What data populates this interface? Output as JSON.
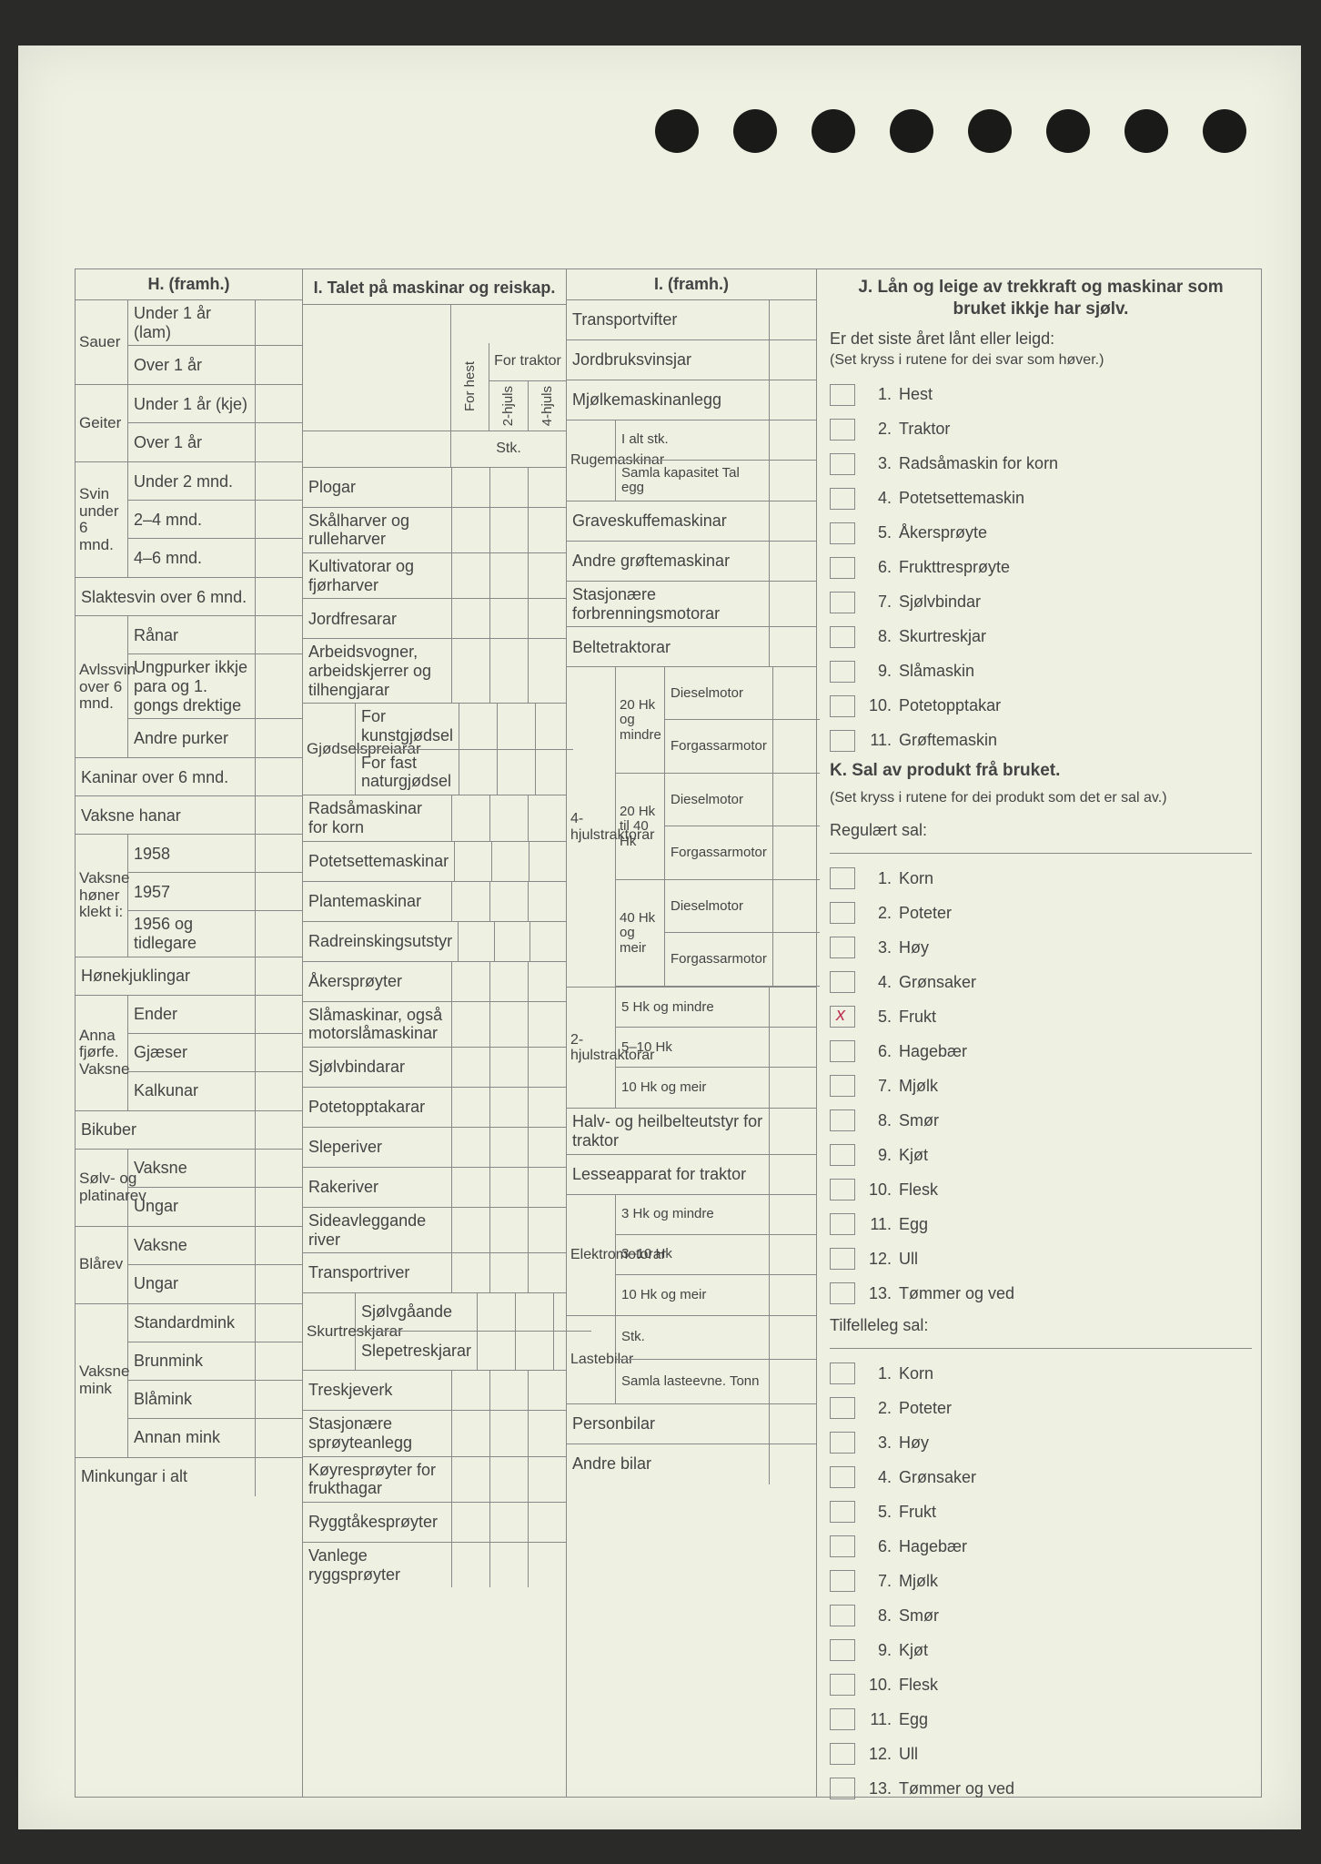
{
  "header": {
    "H": "H. (framh.)",
    "I": "I. Talet på maskinar og reiskap.",
    "I2": "I. (framh.)",
    "J": "J. Lån og leige av trekkraft og maskinar som bruket ikkje har sjølv.",
    "K": "K. Sal av produkt frå bruket."
  },
  "H": {
    "groups": [
      {
        "side": "Sauer",
        "rows": [
          "Under 1 år (lam)",
          "Over 1 år"
        ]
      },
      {
        "side": "Geiter",
        "rows": [
          "Under 1 år (kje)",
          "Over 1 år"
        ]
      },
      {
        "side": "Svin under 6 mnd.",
        "rows": [
          "Under 2 mnd.",
          "2–4 mnd.",
          "4–6 mnd."
        ]
      }
    ],
    "slaktesvin": "Slaktesvin over 6 mnd.",
    "avls": {
      "side": "Avlssvin over 6 mnd.",
      "rows": [
        "Rånar",
        "Ungpurker ikkje para og 1. gongs drektige",
        "Andre purker"
      ]
    },
    "kaninar": "Kaninar over 6 mnd.",
    "hanar": "Vaksne hanar",
    "honer": {
      "side": "Vaksne høner klekt i:",
      "rows": [
        "1958",
        "1957",
        "1956 og tidlegare"
      ]
    },
    "honekjuklingar": "Hønekjuklingar",
    "fjorfe": {
      "side": "Anna fjørfe. Vaksne",
      "rows": [
        "Ender",
        "Gjæser",
        "Kalkunar"
      ]
    },
    "bikuber": "Bikuber",
    "solvrev": {
      "side": "Sølv- og platinarev",
      "rows": [
        "Vaksne",
        "Ungar"
      ]
    },
    "blarev": {
      "side": "Blårev",
      "rows": [
        "Vaksne",
        "Ungar"
      ]
    },
    "mink": {
      "side": "Vaksne mink",
      "rows": [
        "Standardmink",
        "Brunmink",
        "Blåmink",
        "Annan mink"
      ]
    },
    "minkungar": "Minkungar i alt"
  },
  "I": {
    "for_traktor": "For traktor",
    "for_hest": "For hest",
    "hjuls2": "2-hjuls",
    "hjuls4": "4-hjuls",
    "stk": "Stk.",
    "rows": [
      "Plogar",
      "Skålharver og rulleharver",
      "Kultivatorar og fjørharver",
      "Jordfresarar"
    ],
    "arbeidsvogner": "Arbeidsvogner, arbeidskjerrer og tilhengjarar",
    "gjodsel": {
      "side": "Gjødselspreiarar",
      "rows": [
        "For kunstgjødsel",
        "For fast naturgjødsel"
      ]
    },
    "rows2": [
      "Radsåmaskinar for korn",
      "Potetsettemaskinar",
      "Plantemaskinar",
      "Radreinskingsutstyr",
      "Åkersprøyter",
      "Slåmaskinar, også motorslåmaskinar",
      "Sjølvbindarar",
      "Potetopptakarar",
      "Sleperiver",
      "Rakeriver",
      "Sideavleggande river",
      "Transportriver"
    ],
    "skurtresk": {
      "side": "Skurtreskjarar",
      "rows": [
        "Sjølvgåande",
        "Slepetreskjarar"
      ]
    },
    "rows3": [
      "Treskjeverk",
      "Stasjonære sprøyteanlegg",
      "Køyresprøyter for frukthagar",
      "Ryggtåkesprøyter",
      "Vanlege ryggsprøyter"
    ]
  },
  "I2": {
    "rows_top": [
      "Transportvifter",
      "Jordbruksvinsjar",
      "Mjølkemaskinanlegg"
    ],
    "ruge": {
      "side": "Rugemaskinar",
      "rows": [
        "I alt stk.",
        "Samla kapasitet Tal egg"
      ]
    },
    "rows_mid": [
      "Graveskuffemaskinar",
      "Andre grøftemaskinar",
      "Stasjonære forbrenningsmotorar",
      "Beltetraktorar"
    ],
    "hjuls4": {
      "side": "4-hjulstraktorar",
      "groups": [
        {
          "mid": "20 Hk og mindre",
          "rows": [
            "Dieselmotor",
            "Forgassarmotor"
          ]
        },
        {
          "mid": "20 Hk til 40 Hk",
          "rows": [
            "Dieselmotor",
            "Forgassarmotor"
          ]
        },
        {
          "mid": "40 Hk og meir",
          "rows": [
            "Dieselmotor",
            "Forgassarmotor"
          ]
        }
      ]
    },
    "hjuls2": {
      "side": "2-hjulstraktorar",
      "rows": [
        "5 Hk og mindre",
        "5–10 Hk",
        "10 Hk og meir"
      ]
    },
    "halvbelt": "Halv- og heilbelteutstyr for traktor",
    "lesse": "Lesseapparat for traktor",
    "elektro": {
      "side": "Elektromotorar",
      "rows": [
        "3 Hk og mindre",
        "3–10 Hk",
        "10 Hk og meir"
      ]
    },
    "laste": {
      "side": "Lastebilar",
      "rows": [
        "Stk.",
        "Samla lasteevne. Tonn"
      ]
    },
    "rows_bot": [
      "Personbilar",
      "Andre bilar"
    ]
  },
  "J": {
    "intro": "Er det siste året lånt eller leigd:",
    "note": "(Set kryss i rutene for dei svar som høver.)",
    "items": [
      "Hest",
      "Traktor",
      "Radsåmaskin for korn",
      "Potetsettemaskin",
      "Åkersprøyte",
      "Frukttresprøyte",
      "Sjølvbindar",
      "Skurtreskjar",
      "Slåmaskin",
      "Potetopptakar",
      "Grøftemaskin"
    ]
  },
  "K": {
    "note": "(Set kryss i rutene for dei produkt som det er sal av.)",
    "reg_label": "Regulært sal:",
    "reg": [
      "Korn",
      "Poteter",
      "Høy",
      "Grønsaker",
      "Frukt",
      "Hagebær",
      "Mjølk",
      "Smør",
      "Kjøt",
      "Flesk",
      "Egg",
      "Ull",
      "Tømmer og ved"
    ],
    "reg_marked": 4,
    "til_label": "Tilfelleleg sal:",
    "til": [
      "Korn",
      "Poteter",
      "Høy",
      "Grønsaker",
      "Frukt",
      "Hagebær",
      "Mjølk",
      "Smør",
      "Kjøt",
      "Flesk",
      "Egg",
      "Ull",
      "Tømmer og ved"
    ]
  }
}
